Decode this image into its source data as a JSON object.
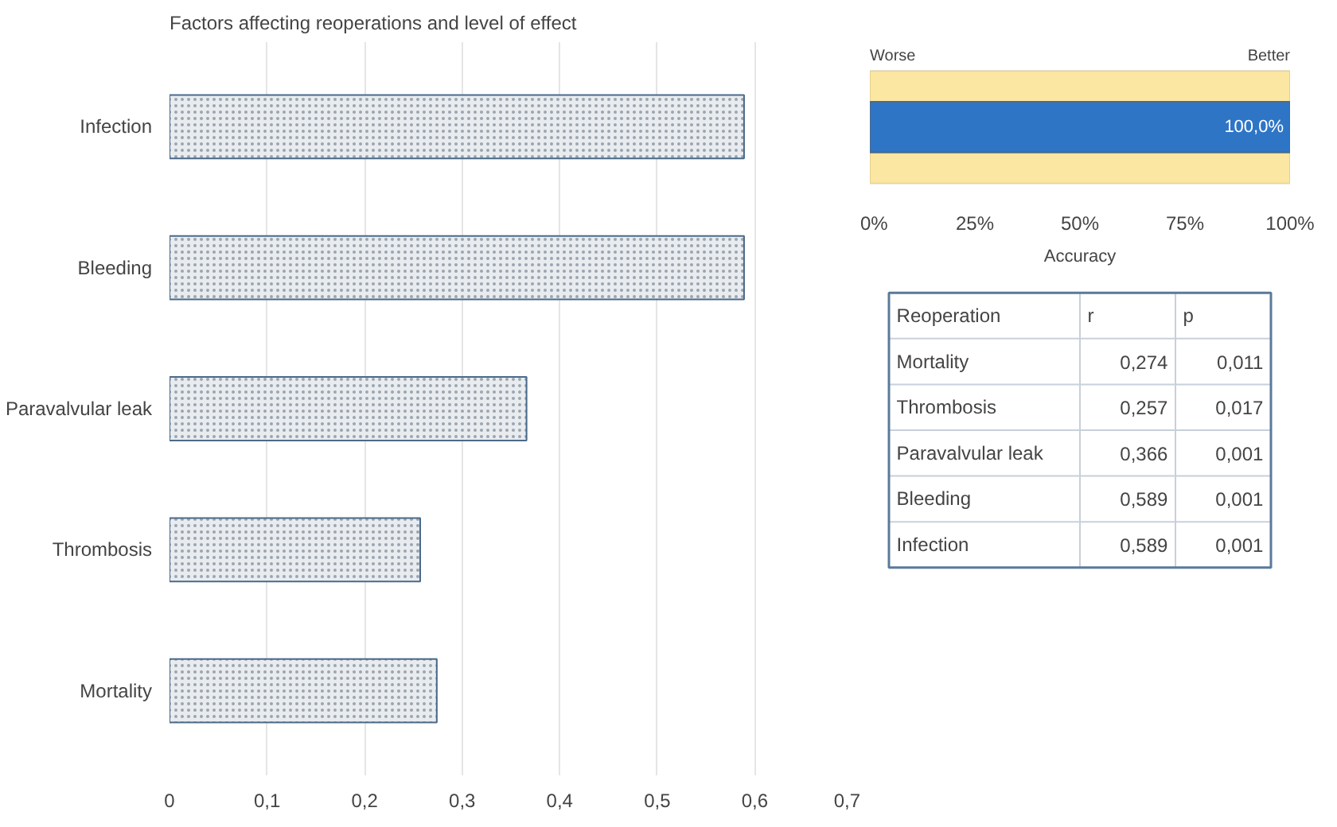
{
  "chart_data": [
    {
      "type": "bar",
      "title": "Factors affecting reoperations and level of effect",
      "orientation": "horizontal",
      "categories": [
        "Infection",
        "Bleeding",
        "Paravalvular leak",
        "Thrombosis",
        "Mortality"
      ],
      "values": [
        0.589,
        0.589,
        0.366,
        0.257,
        0.274
      ],
      "color": "#e9ecef",
      "xlim": [
        0,
        0.7
      ],
      "xticks": [
        0,
        {
          "value": 0.1,
          "label": "0,1"
        },
        {
          "value": 0.2,
          "label": "0,2"
        },
        {
          "value": 0.3,
          "label": "0,3"
        },
        {
          "value": 0.4,
          "label": "0,4"
        },
        {
          "value": 0.5,
          "label": "0,5"
        },
        {
          "value": 0.6,
          "label": "0,6"
        },
        {
          "value": 0.7,
          "label": "0,7"
        }
      ],
      "grid": "x"
    },
    {
      "type": "bar",
      "orientation": "horizontal",
      "categories": [
        null
      ],
      "values": [
        100
      ],
      "color": "#2e75c6",
      "value_labels": [
        "100,0%"
      ],
      "xlabel": "Accuracy",
      "xlim": [
        0,
        100
      ],
      "xticks": [
        {
          "value": 0,
          "label": "0%"
        },
        {
          "value": 25,
          "label": "25%"
        },
        {
          "value": 50,
          "label": "50%"
        },
        {
          "value": 75,
          "label": "75%"
        },
        {
          "value": 100,
          "label": "100%"
        }
      ],
      "bands": [
        {
          "axis": "x",
          "from": 0,
          "to": 100,
          "color": "#fbe7a1"
        }
      ],
      "annotations": [
        "Worse",
        "Better"
      ]
    },
    {
      "type": "other",
      "annotations": [
        "Reoperation",
        "r",
        "p",
        "Mortality",
        "0,274",
        "0,011",
        "Thrombosis",
        "0,257",
        "0,017",
        "Paravalvular leak",
        "0,366",
        "0,001",
        "Bleeding",
        "0,589",
        "0,001",
        "Infection",
        "0,589",
        "0,001"
      ]
    }
  ]
}
